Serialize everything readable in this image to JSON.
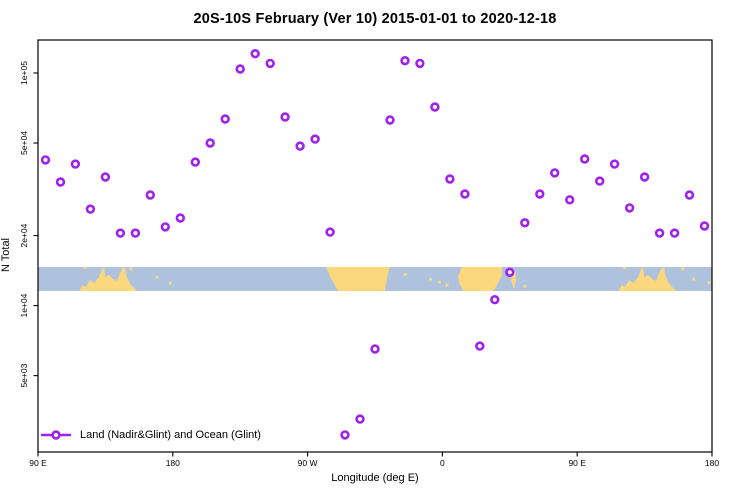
{
  "title": "20S-10S February (Ver 10)   2015-01-01 to 2020-12-18",
  "axes": {
    "x_label": "Longitude (deg E)",
    "y_label": "N Total",
    "x_ticks": [
      {
        "pos": 90,
        "label": "90 E"
      },
      {
        "pos": 180,
        "label": "180"
      },
      {
        "pos": 270,
        "label": "90 W"
      },
      {
        "pos": 360,
        "label": "0"
      },
      {
        "pos": 450,
        "label": "90 E"
      },
      {
        "pos": 540,
        "label": "180"
      }
    ],
    "y_ticks": [
      {
        "value": 100000,
        "label": "1e+05"
      },
      {
        "value": 50000,
        "label": "5e+04"
      },
      {
        "value": 20000,
        "label": "2e+04"
      },
      {
        "value": 10000,
        "label": "1e+04"
      },
      {
        "value": 5000,
        "label": "5e+03"
      }
    ]
  },
  "legend": {
    "label": "Land (Nadir&Glint) and Ocean (Glint)"
  },
  "colors": {
    "marker": "#A020F0",
    "ocean": "#AEC2DE",
    "land": "#FBD87E",
    "axis": "#000000"
  },
  "chart_data": {
    "type": "scatter",
    "title": "20S-10S February (Ver 10)   2015-01-01 to 2020-12-18",
    "xlabel": "Longitude (deg E)",
    "ylabel": "N Total",
    "x_axis": {
      "start_deg": 90,
      "end_deg": 540,
      "note": "longitude axis wraps: 90E to 180, through 90W, 0, 90E, 180"
    },
    "y_axis": {
      "scale": "log",
      "ylim": [
        2350,
        139000
      ]
    },
    "legend_position": "bottom-left",
    "series": [
      {
        "name": "Land (Nadir&Glint) and Ocean (Glint)",
        "marker": "open-circle",
        "points": [
          [
            95,
            42300
          ],
          [
            105,
            34000
          ],
          [
            115,
            40600
          ],
          [
            125,
            26000
          ],
          [
            135,
            35700
          ],
          [
            145,
            20500
          ],
          [
            155,
            20500
          ],
          [
            165,
            29900
          ],
          [
            175,
            21800
          ],
          [
            185,
            23800
          ],
          [
            195,
            41400
          ],
          [
            205,
            50000
          ],
          [
            215,
            63400
          ],
          [
            225,
            104000
          ],
          [
            235,
            121000
          ],
          [
            245,
            110000
          ],
          [
            255,
            64700
          ],
          [
            265,
            48500
          ],
          [
            275,
            52000
          ],
          [
            285,
            20700
          ],
          [
            295,
            2780
          ],
          [
            305,
            3250
          ],
          [
            315,
            6510
          ],
          [
            325,
            62800
          ],
          [
            335,
            113000
          ],
          [
            345,
            110000
          ],
          [
            355,
            71400
          ],
          [
            365,
            35000
          ],
          [
            375,
            30200
          ],
          [
            385,
            6700
          ],
          [
            395,
            10600
          ],
          [
            405,
            13900
          ],
          [
            415,
            22700
          ],
          [
            425,
            30200
          ],
          [
            435,
            37200
          ],
          [
            445,
            28500
          ],
          [
            455,
            42700
          ],
          [
            465,
            34300
          ],
          [
            475,
            40600
          ],
          [
            485,
            26300
          ],
          [
            495,
            35700
          ],
          [
            505,
            20500
          ],
          [
            515,
            20500
          ],
          [
            525,
            29900
          ],
          [
            535,
            22000
          ]
        ]
      }
    ],
    "map_strip": {
      "description": "20S-10S latitude world map band, ocean blue with yellow land",
      "land_polygons": [
        {
          "name": "australia-west-copy",
          "pts": [
            [
              118,
              1
            ],
            [
              119.4,
              0.75
            ],
            [
              122,
              0.83
            ],
            [
              124.7,
              0.54
            ],
            [
              127.4,
              0.67
            ],
            [
              130.7,
              0.42
            ],
            [
              132.7,
              0.08
            ],
            [
              134.1,
              0.04
            ],
            [
              134.7,
              0.42
            ],
            [
              137.4,
              0.33
            ],
            [
              140.1,
              0.5
            ],
            [
              142.7,
              0.58
            ],
            [
              144.7,
              0.25
            ],
            [
              146.7,
              0.04
            ],
            [
              148.1,
              0.04
            ],
            [
              148.7,
              0.29
            ],
            [
              150.1,
              0.54
            ],
            [
              152.1,
              0.75
            ],
            [
              154.1,
              0.875
            ],
            [
              156.1,
              1
            ]
          ]
        },
        {
          "name": "south-america",
          "pts": [
            [
              282.3,
              0
            ],
            [
              325,
              0
            ],
            [
              323.5,
              0.3
            ],
            [
              321.6,
              1
            ],
            [
              290.3,
              1
            ],
            [
              285,
              0.4
            ]
          ]
        },
        {
          "name": "africa",
          "pts": [
            [
              373.1,
              0
            ],
            [
              399.8,
              0
            ],
            [
              399.8,
              0.35
            ],
            [
              396,
              0.8
            ],
            [
              394,
              1
            ],
            [
              374,
              1
            ],
            [
              371.5,
              0.7
            ],
            [
              370.4,
              0.4
            ],
            [
              372,
              0.15
            ]
          ]
        },
        {
          "name": "madagascar",
          "pts": [
            [
              406.3,
              0.12
            ],
            [
              408.8,
              0.2
            ],
            [
              409.2,
              0.55
            ],
            [
              407.8,
              0.92
            ],
            [
              406,
              0.55
            ]
          ]
        },
        {
          "name": "australia-east",
          "pts": [
            [
              478,
              1
            ],
            [
              479.4,
              0.75
            ],
            [
              482,
              0.83
            ],
            [
              484.7,
              0.54
            ],
            [
              487.4,
              0.67
            ],
            [
              490.7,
              0.42
            ],
            [
              492.7,
              0.08
            ],
            [
              494.1,
              0.04
            ],
            [
              494.7,
              0.42
            ],
            [
              497.4,
              0.33
            ],
            [
              500.1,
              0.5
            ],
            [
              502.7,
              0.58
            ],
            [
              504.7,
              0.25
            ],
            [
              506.7,
              0.04
            ],
            [
              508.1,
              0.04
            ],
            [
              508.7,
              0.29
            ],
            [
              510.1,
              0.54
            ],
            [
              512.1,
              0.75
            ],
            [
              514.1,
              0.875
            ],
            [
              516.1,
              1
            ]
          ]
        }
      ],
      "island_specks": [
        [
          121.4,
          0.02
        ],
        [
          152.1,
          0.08
        ],
        [
          169.4,
          0.42
        ],
        [
          178.1,
          0.67
        ],
        [
          335,
          0.3
        ],
        [
          352,
          0.5
        ],
        [
          358,
          0.62
        ],
        [
          363,
          0.75
        ],
        [
          415.1,
          0.8
        ],
        [
          481.4,
          0.02
        ],
        [
          520.5,
          0.08
        ],
        [
          527.8,
          0.5
        ],
        [
          538,
          0.65
        ]
      ]
    }
  }
}
